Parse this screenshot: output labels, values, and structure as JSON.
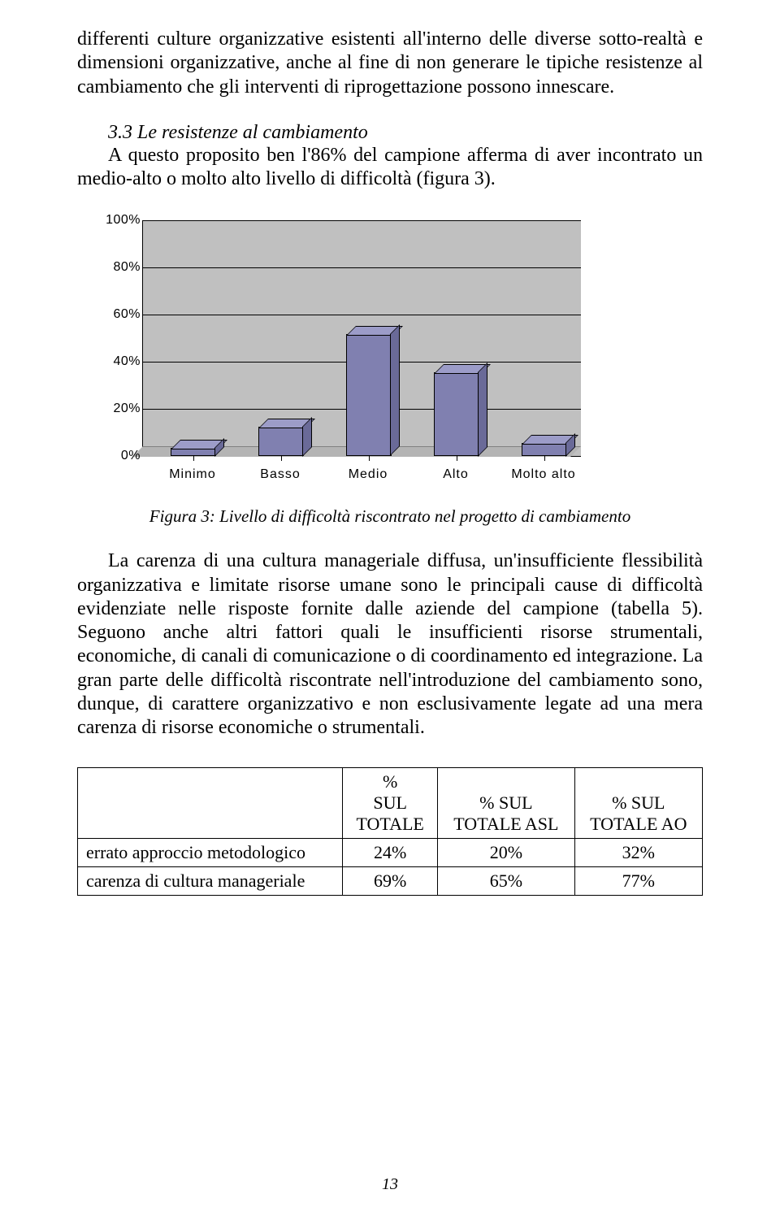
{
  "para1": "differenti culture organizzative esistenti all'interno delle diverse sotto-realtà e dimensioni organizzative, anche al fine di non generare le tipiche resistenze al cambiamento che gli interventi di riprogettazione possono innescare.",
  "section_heading": "3.3 Le resistenze al cambiamento",
  "para2": "A questo proposito ben l'86% del campione afferma di aver incontrato un medio-alto o molto alto livello di difficoltà (figura 3).",
  "chart": {
    "type": "bar3d",
    "categories": [
      "Minimo",
      "Basso",
      "Medio",
      "Alto",
      "Molto alto"
    ],
    "values": [
      3,
      12,
      51,
      35,
      5
    ],
    "ylim": [
      0,
      100
    ],
    "ytick_step": 20,
    "ytick_labels": [
      "0%",
      "20%",
      "40%",
      "60%",
      "80%",
      "100%"
    ],
    "bar_color_front": "#8080b0",
    "bar_color_top": "#9c9cc8",
    "bar_color_side": "#6a6a98",
    "plot_bg": "#c0c0c0",
    "floor_color": "#b4b4b4",
    "axis_fontsize": 16
  },
  "figure_caption": "Figura 3:   Livello di difficoltà riscontrato nel progetto di cambiamento",
  "para3": "La carenza di una cultura manageriale diffusa, un'insufficiente flessibilità organizzativa e limitate risorse umane sono le principali cause di difficoltà evidenziate nelle risposte fornite dalle aziende del campione (tabella 5). Seguono anche altri fattori quali le insufficienti risorse strumentali, economiche, di canali di comunicazione o di coordinamento ed integrazione. La gran parte delle difficoltà riscontrate nell'introduzione del cambiamento sono, dunque, di carattere organizzativo e non esclusivamente legate ad una mera carenza di risorse economiche o strumentali.",
  "table": {
    "headers": [
      "",
      "% SUL TOTALE",
      "% SUL TOTALE ASL",
      "% SUL TOTALE AO"
    ],
    "header_col1_line1": "%",
    "header_col1_line2": "SUL",
    "header_col1_line3": "TOTALE",
    "header_col2_line1": "% SUL",
    "header_col2_line2": "TOTALE ASL",
    "header_col3_line1": "% SUL",
    "header_col3_line2": "TOTALE AO",
    "rows": [
      {
        "label": "errato approccio metodologico",
        "c1": "24%",
        "c2": "20%",
        "c3": "32%"
      },
      {
        "label": "carenza di cultura manageriale",
        "c1": "69%",
        "c2": "65%",
        "c3": "77%"
      }
    ]
  },
  "page_number": "13"
}
